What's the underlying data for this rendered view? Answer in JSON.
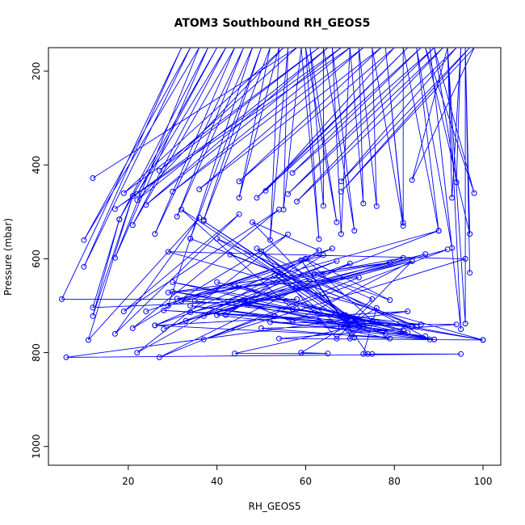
{
  "chart_data": {
    "type": "line",
    "title": "ATOM3 Southbound RH_GEOS5",
    "xlabel": "RH_GEOS5",
    "ylabel": "Pressure (mbar)",
    "xlim": [
      2,
      104
    ],
    "ylim": [
      1040,
      150
    ],
    "y_inverted": true,
    "x_ticks": [
      20,
      40,
      60,
      80,
      100
    ],
    "y_ticks": [
      200,
      400,
      600,
      800,
      1000
    ],
    "grid": false,
    "legend": "none",
    "series_color": "#0000ff",
    "markers": "open-circle",
    "series": [
      {
        "values_note": "",
        "points": [
          [
            12,
            428
          ],
          [
            58,
            150
          ],
          [
            27,
            412
          ],
          [
            63,
            150
          ],
          [
            19,
            460
          ],
          [
            55,
            150
          ],
          [
            22,
            475
          ],
          [
            65,
            150
          ],
          [
            24,
            485
          ],
          [
            68,
            150
          ],
          [
            17,
            494
          ],
          [
            70,
            150
          ],
          [
            30,
            457
          ],
          [
            73,
            150
          ],
          [
            36,
            452
          ],
          [
            77,
            150
          ],
          [
            45,
            435
          ],
          [
            80,
            150
          ],
          [
            51,
            455
          ],
          [
            83,
            150
          ],
          [
            49,
            470
          ],
          [
            86,
            150
          ],
          [
            57,
            417
          ],
          [
            89,
            150
          ],
          [
            56,
            462
          ],
          [
            91,
            150
          ],
          [
            58,
            478
          ],
          [
            94,
            150
          ],
          [
            68,
            435
          ],
          [
            97,
            150
          ],
          [
            68,
            457
          ],
          [
            98,
            150
          ],
          [
            84,
            432
          ],
          [
            92,
            150
          ],
          [
            93,
            470
          ],
          [
            95,
            150
          ],
          [
            94,
            437
          ],
          [
            89,
            150
          ],
          [
            98,
            460
          ],
          [
            87,
            150
          ],
          [
            97,
            547
          ],
          [
            96,
            150
          ],
          [
            97,
            630
          ],
          [
            96,
            150
          ],
          [
            96,
            738
          ],
          [
            92,
            150
          ],
          [
            95,
            750
          ],
          [
            88,
            150
          ],
          [
            93,
            577
          ],
          [
            85,
            150
          ],
          [
            90,
            540
          ],
          [
            82,
            150
          ],
          [
            82,
            523
          ],
          [
            78,
            150
          ],
          [
            82,
            530
          ],
          [
            75,
            150
          ],
          [
            76,
            488
          ],
          [
            72,
            150
          ],
          [
            73,
            482
          ],
          [
            70,
            150
          ],
          [
            68,
            547
          ],
          [
            66,
            150
          ],
          [
            71,
            540
          ],
          [
            64,
            150
          ],
          [
            64,
            487
          ],
          [
            61,
            150
          ],
          [
            67,
            522
          ],
          [
            60,
            150
          ],
          [
            63,
            558
          ],
          [
            59,
            150
          ],
          [
            55,
            495
          ],
          [
            56,
            150
          ],
          [
            52,
            560
          ],
          [
            54,
            150
          ],
          [
            45,
            470
          ],
          [
            52,
            150
          ],
          [
            37,
            517
          ],
          [
            50,
            150
          ],
          [
            34,
            557
          ],
          [
            48,
            150
          ],
          [
            31,
            510
          ],
          [
            46,
            150
          ],
          [
            26,
            547
          ],
          [
            44,
            150
          ],
          [
            21,
            528
          ],
          [
            42,
            150
          ],
          [
            22,
            462
          ],
          [
            40,
            150
          ],
          [
            18,
            516
          ],
          [
            38,
            150
          ],
          [
            17,
            598
          ],
          [
            36,
            150
          ],
          [
            10,
            560
          ],
          [
            34,
            150
          ],
          [
            10,
            617
          ],
          [
            32,
            150
          ],
          [
            5,
            686
          ],
          [
            58,
            686
          ],
          [
            12,
            704
          ],
          [
            18,
            516
          ],
          [
            12,
            722
          ],
          [
            21,
            466
          ],
          [
            11,
            773
          ],
          [
            36,
            512
          ],
          [
            17,
            760
          ],
          [
            45,
            505
          ],
          [
            19,
            712
          ],
          [
            54,
            495
          ],
          [
            21,
            748
          ],
          [
            56,
            548
          ],
          [
            22,
            800
          ],
          [
            60,
            600
          ],
          [
            24,
            712
          ],
          [
            66,
            578
          ],
          [
            26,
            742
          ],
          [
            67,
            605
          ],
          [
            28,
            750
          ],
          [
            70,
            610
          ],
          [
            27,
            810
          ],
          [
            72,
            640
          ],
          [
            29,
            672
          ],
          [
            79,
            608
          ],
          [
            31,
            685
          ],
          [
            82,
            598
          ],
          [
            33,
            732
          ],
          [
            84,
            605
          ],
          [
            34,
            714
          ],
          [
            87,
            590
          ],
          [
            37,
            722
          ],
          [
            92,
            580
          ],
          [
            37,
            772
          ],
          [
            96,
            600
          ],
          [
            29,
            585
          ],
          [
            100,
            773
          ],
          [
            30,
            650
          ],
          [
            89,
            772
          ],
          [
            34,
            700
          ],
          [
            83,
            757
          ],
          [
            40,
            650
          ],
          [
            82,
            752
          ],
          [
            44,
            655
          ],
          [
            78,
            760
          ],
          [
            47,
            698
          ],
          [
            86,
            740
          ],
          [
            50,
            748
          ],
          [
            79,
            770
          ],
          [
            53,
            722
          ],
          [
            87,
            765
          ],
          [
            52,
            735
          ],
          [
            94,
            740
          ],
          [
            54,
            770
          ],
          [
            100,
            773
          ],
          [
            58,
            707
          ],
          [
            75,
            732
          ],
          [
            60,
            600
          ],
          [
            79,
            688
          ],
          [
            62,
            632
          ],
          [
            75,
            686
          ],
          [
            68,
            745
          ],
          [
            69,
            720
          ],
          [
            70,
            770
          ],
          [
            73,
            740
          ],
          [
            44,
            802
          ],
          [
            65,
            802
          ],
          [
            59,
            800
          ],
          [
            76,
            705
          ],
          [
            73,
            803
          ],
          [
            75,
            803
          ],
          [
            95,
            803
          ],
          [
            6,
            810
          ],
          [
            83,
            712
          ],
          [
            26,
            742
          ],
          [
            89,
            772
          ],
          [
            30,
            670
          ],
          [
            84,
            745
          ],
          [
            28,
            710
          ],
          [
            76,
            735
          ],
          [
            35,
            690
          ],
          [
            72,
            730
          ],
          [
            46,
            690
          ],
          [
            57,
            735
          ],
          [
            84,
            605
          ],
          [
            67,
            770
          ],
          [
            50,
            584
          ],
          [
            88,
            772
          ],
          [
            40,
            720
          ],
          [
            90,
            540
          ],
          [
            29,
            700
          ],
          [
            34,
            557
          ],
          [
            85,
            745
          ],
          [
            43,
            591
          ],
          [
            85,
            745
          ],
          [
            40,
            557
          ],
          [
            72,
            735
          ],
          [
            37,
            520
          ],
          [
            73,
            745
          ],
          [
            49,
            578
          ],
          [
            71,
            740
          ],
          [
            32,
            495
          ],
          [
            57,
            707
          ],
          [
            32,
            690
          ],
          [
            64,
            592
          ],
          [
            42,
            720
          ],
          [
            63,
            582
          ],
          [
            48,
            522
          ],
          [
            70,
            740
          ],
          [
            53,
            635
          ],
          [
            71,
            768
          ],
          [
            59,
            603
          ],
          [
            74,
            803
          ]
        ]
      }
    ]
  }
}
